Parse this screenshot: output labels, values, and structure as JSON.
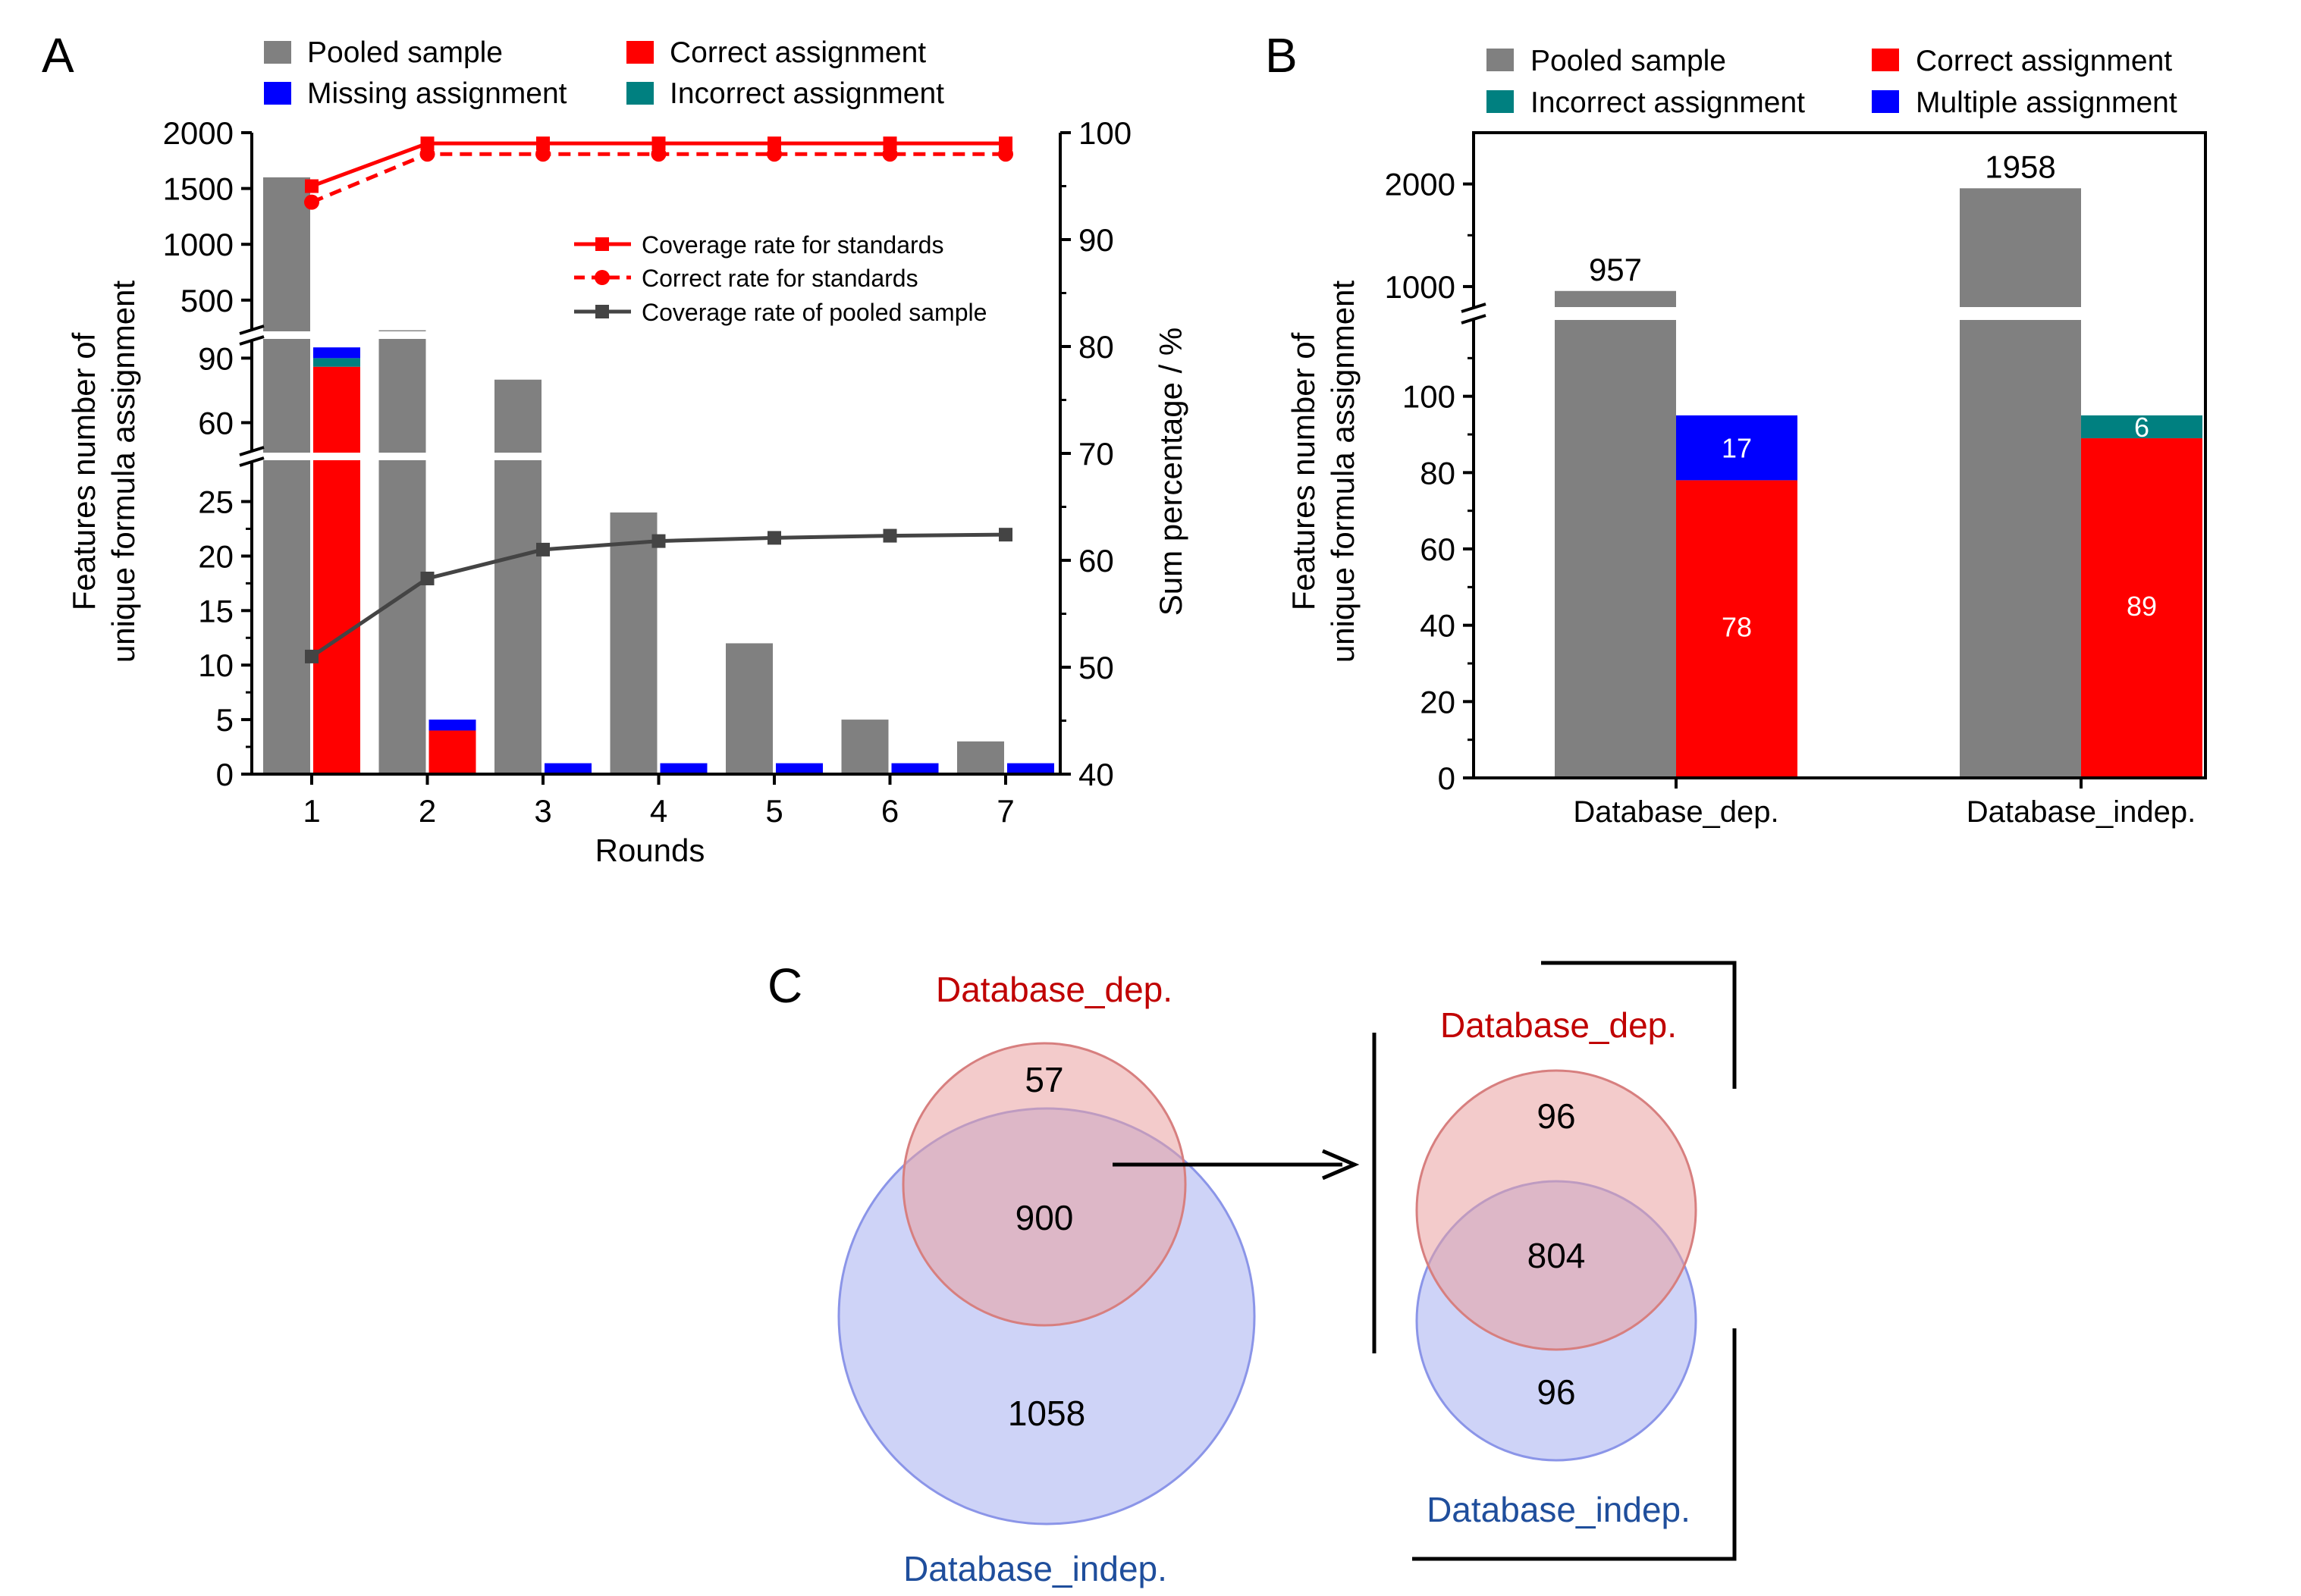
{
  "panels": {
    "a": "A",
    "b": "B",
    "c": "C"
  },
  "colors": {
    "pooled": "#808080",
    "correct": "#ff0000",
    "missing": "#0000ff",
    "incorrect": "#008080",
    "multiple": "#0000ff",
    "pooled_line": "#444444",
    "dep_text": "#c00000",
    "indep_text": "#1f4e9c",
    "dep_fill": "#e9a0a0",
    "indep_fill": "#a6aef0"
  },
  "chart_data": [
    {
      "id": "A",
      "type": "bar",
      "title": "",
      "xlabel": "Rounds",
      "ylabel_line1": "Features number of",
      "ylabel_line2": "unique formula assignment",
      "y2label": "Sum percentage / %",
      "categories": [
        "1",
        "2",
        "3",
        "4",
        "5",
        "6",
        "7"
      ],
      "ylim": [
        0,
        2000
      ],
      "y_axis_breaks": [
        [
          28,
          45
        ],
        [
          100,
          200
        ]
      ],
      "y_ticks": [
        "0",
        "5",
        "10",
        "15",
        "20",
        "25",
        "60",
        "90",
        "500",
        "1000",
        "1500",
        "2000"
      ],
      "y2lim": [
        40,
        100
      ],
      "y2_ticks": [
        "40",
        "50",
        "60",
        "70",
        "80",
        "90",
        "100"
      ],
      "legend": [
        "Pooled sample",
        "Correct assignment",
        "Missing assignment",
        "Incorrect assignment"
      ],
      "bar_series": [
        {
          "name": "Pooled sample",
          "values": [
            1600,
            230,
            80,
            24,
            12,
            5,
            3
          ]
        },
        {
          "name": "Correct assignment",
          "values": [
            86,
            4,
            0,
            0,
            0,
            0,
            0
          ]
        },
        {
          "name": "Incorrect assignment",
          "values": [
            4,
            0,
            0,
            0,
            0,
            0,
            0
          ]
        },
        {
          "name": "Missing assignment",
          "values": [
            5,
            1,
            1,
            1,
            1,
            1,
            1
          ]
        }
      ],
      "line_legend": [
        "Coverage rate for standards",
        "Correct rate for standards",
        "Coverage rate of pooled sample"
      ],
      "line_series": [
        {
          "name": "Coverage rate for standards",
          "values": [
            95,
            99,
            99,
            99,
            99,
            99,
            99
          ]
        },
        {
          "name": "Correct rate for standards",
          "values": [
            93.5,
            98,
            98,
            98,
            98,
            98,
            98
          ]
        },
        {
          "name": "Coverage rate of pooled sample",
          "values": [
            51,
            58.3,
            61,
            61.8,
            62.1,
            62.3,
            62.4
          ]
        }
      ]
    },
    {
      "id": "B",
      "type": "bar",
      "title": "",
      "xlabel": "",
      "ylabel_line1": "Features number of",
      "ylabel_line2": "unique formula assignment",
      "categories": [
        "Database_dep.",
        "Database_indep."
      ],
      "ylim": [
        0,
        2500
      ],
      "y_axis_break": [
        120,
        800
      ],
      "y_ticks": [
        "0",
        "20",
        "40",
        "60",
        "80",
        "100",
        "1000",
        "2000"
      ],
      "legend": [
        "Pooled sample",
        "Correct assignment",
        "Incorrect assignment",
        "Multiple assignment"
      ],
      "series": [
        {
          "name": "Pooled sample",
          "values": [
            957,
            1958
          ],
          "labels": [
            "957",
            "1958"
          ]
        },
        {
          "name": "Correct assignment",
          "values": [
            78,
            89
          ],
          "labels": [
            "78",
            "89"
          ]
        },
        {
          "name": "Multiple assignment",
          "values": [
            17,
            0
          ],
          "labels": [
            "17",
            ""
          ]
        },
        {
          "name": "Incorrect assignment",
          "values": [
            0,
            6
          ],
          "labels": [
            "",
            "6"
          ]
        }
      ]
    },
    {
      "id": "C",
      "type": "venn",
      "diagrams": [
        {
          "set_a": "Database_dep.",
          "set_b": "Database_indep.",
          "only_a": "57",
          "both": "900",
          "only_b": "1058",
          "only_a_value": 57,
          "both_value": 900,
          "only_b_value": 1058
        },
        {
          "set_a": "Database_dep.",
          "set_b": "Database_indep.",
          "only_a": "96",
          "both": "804",
          "only_b": "96",
          "only_a_value": 96,
          "both_value": 804,
          "only_b_value": 96
        }
      ]
    }
  ]
}
